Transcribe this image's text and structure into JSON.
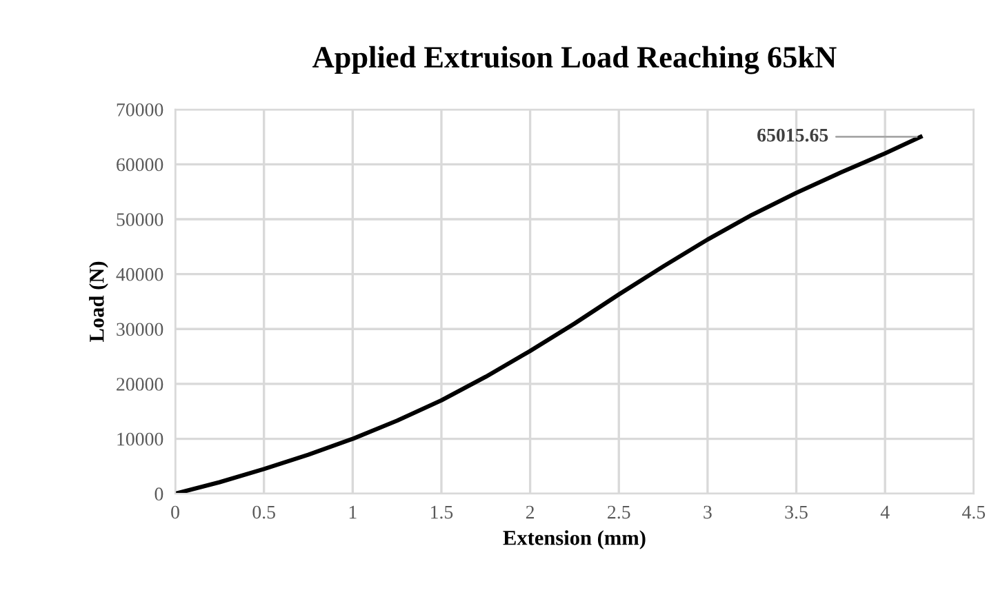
{
  "chart_data": {
    "type": "line",
    "title": "Applied Extruison Load Reaching 65kN",
    "xlabel": "Extension (mm)",
    "ylabel": "Load (N)",
    "x": [
      0,
      0.25,
      0.5,
      0.75,
      1,
      1.25,
      1.5,
      1.75,
      2,
      2.25,
      2.5,
      2.75,
      3,
      3.25,
      3.5,
      3.75,
      4,
      4.2
    ],
    "series": [
      {
        "color": "#000000",
        "values": [
          0,
          2100,
          4500,
          7100,
          10000,
          13300,
          17000,
          21300,
          26000,
          31000,
          36300,
          41400,
          46300,
          50800,
          54800,
          58500,
          62000,
          65015.65
        ]
      }
    ],
    "annotations": [
      {
        "text": "65015.65",
        "x": 4.2,
        "y": 65015.65
      }
    ],
    "xlim": [
      0,
      4.5
    ],
    "xticks": [
      0,
      0.5,
      1,
      1.5,
      2,
      2.5,
      3,
      3.5,
      4,
      4.5
    ],
    "ylim": [
      0,
      70000
    ],
    "yticks": [
      0,
      10000,
      20000,
      30000,
      40000,
      50000,
      60000,
      70000
    ],
    "grid": true,
    "legend": false,
    "marker": "none",
    "line_style": "solid"
  }
}
